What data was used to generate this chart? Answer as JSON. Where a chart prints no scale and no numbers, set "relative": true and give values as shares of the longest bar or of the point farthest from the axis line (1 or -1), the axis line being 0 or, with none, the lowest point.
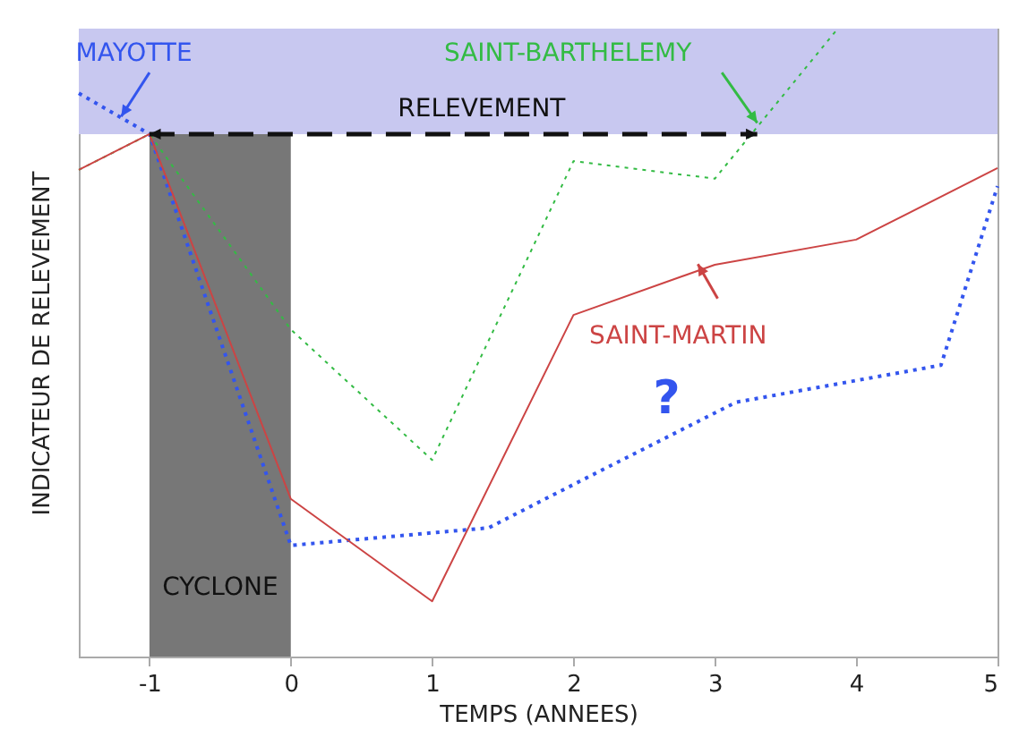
{
  "chart_data": {
    "type": "line",
    "relative": true,
    "xlabel": "TEMPS (ANNEES)",
    "ylabel": "INDICATEUR DE RELEVEMENT",
    "xlim": [
      -1.5,
      5
    ],
    "xticks": [
      -1,
      0,
      1,
      2,
      3,
      4,
      5
    ],
    "grid": false,
    "marker": "none",
    "series": [
      {
        "name": "MAYOTTE",
        "color": "#3355ee",
        "line_style": "dotted",
        "x": [
          -1.5,
          -1,
          0,
          1,
          1.4,
          2,
          3.15,
          4.6,
          5
        ],
        "values": [
          0.897,
          0.832,
          0.177,
          0.197,
          0.205,
          0.274,
          0.405,
          0.464,
          0.749
        ]
      },
      {
        "name": "SAINT-BARTHELEMY",
        "color": "#33bb44",
        "line_style": "dotted",
        "x": [
          -1.5,
          -1,
          0,
          1,
          2,
          3,
          3.87
        ],
        "values": [
          0.775,
          0.832,
          0.521,
          0.313,
          0.789,
          0.761,
          1.0
        ]
      },
      {
        "name": "SAINT-MARTIN",
        "color": "#cc4444",
        "line_style": "solid",
        "x": [
          -1.5,
          -1,
          0,
          1,
          2,
          3,
          4,
          5
        ],
        "values": [
          0.775,
          0.832,
          0.251,
          0.088,
          0.544,
          0.624,
          0.664,
          0.778
        ]
      }
    ],
    "bands": [
      {
        "axis": "y",
        "from": 0.832,
        "to": 1,
        "label": "RELEVEMENT",
        "color": "#c8c8f0"
      },
      {
        "axis": "x",
        "from": -1,
        "to": 0,
        "label": "CYCLONE",
        "color": "#777777"
      }
    ],
    "annotations": [
      "?"
    ]
  }
}
